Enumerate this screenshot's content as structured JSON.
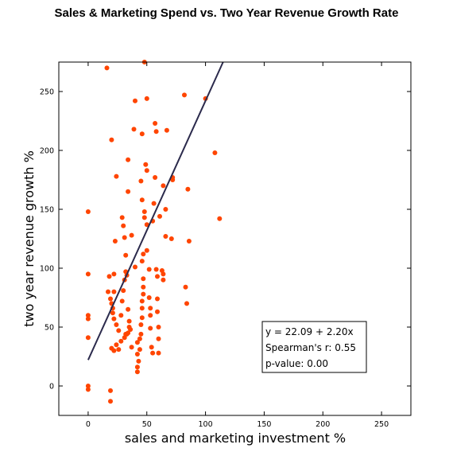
{
  "chart_data": {
    "type": "scatter",
    "title": "Sales & Marketing Spend vs. Two Year Revenue Growth Rate",
    "xlabel": "sales and marketing investment %",
    "ylabel": "two year revenue growth %",
    "xlim": [
      -25,
      275
    ],
    "ylim": [
      -25,
      275
    ],
    "xticks": [
      0,
      50,
      100,
      150,
      200,
      250
    ],
    "yticks": [
      0,
      50,
      100,
      150,
      200,
      250
    ],
    "grid": false,
    "point_color": "#ff4500",
    "line_color": "#2b2a4c",
    "points": [
      [
        0,
        148
      ],
      [
        0,
        95
      ],
      [
        0,
        60
      ],
      [
        0,
        57
      ],
      [
        0,
        41
      ],
      [
        0,
        0
      ],
      [
        0,
        -3
      ],
      [
        16,
        270
      ],
      [
        19,
        -4
      ],
      [
        19,
        -13
      ],
      [
        20,
        209
      ],
      [
        22,
        95
      ],
      [
        22,
        80
      ],
      [
        23,
        123
      ],
      [
        24,
        178
      ],
      [
        18,
        93
      ],
      [
        17,
        80
      ],
      [
        19,
        74
      ],
      [
        20,
        70
      ],
      [
        21,
        66
      ],
      [
        21,
        62
      ],
      [
        22,
        57
      ],
      [
        24,
        52
      ],
      [
        26,
        47
      ],
      [
        20,
        32
      ],
      [
        22,
        30
      ],
      [
        24,
        35
      ],
      [
        26,
        31
      ],
      [
        28,
        38
      ],
      [
        28,
        60
      ],
      [
        29,
        72
      ],
      [
        30,
        81
      ],
      [
        31,
        90
      ],
      [
        29,
        143
      ],
      [
        30,
        136
      ],
      [
        31,
        126
      ],
      [
        32,
        111
      ],
      [
        32,
        97
      ],
      [
        33,
        94
      ],
      [
        34,
        65
      ],
      [
        35,
        55
      ],
      [
        35,
        50
      ],
      [
        36,
        48
      ],
      [
        34,
        45
      ],
      [
        33,
        44
      ],
      [
        32,
        44
      ],
      [
        31,
        41
      ],
      [
        37,
        128
      ],
      [
        34,
        165
      ],
      [
        34,
        192
      ],
      [
        39,
        218
      ],
      [
        37,
        33
      ],
      [
        40,
        242
      ],
      [
        40,
        101
      ],
      [
        42,
        37
      ],
      [
        42,
        27
      ],
      [
        42,
        16
      ],
      [
        42,
        12
      ],
      [
        43,
        21
      ],
      [
        44,
        31
      ],
      [
        44,
        40
      ],
      [
        45,
        44
      ],
      [
        45,
        52
      ],
      [
        46,
        58
      ],
      [
        46,
        66
      ],
      [
        46,
        72
      ],
      [
        47,
        78
      ],
      [
        47,
        84
      ],
      [
        47,
        91
      ],
      [
        46,
        106
      ],
      [
        47,
        112
      ],
      [
        46,
        158
      ],
      [
        45,
        174
      ],
      [
        46,
        214
      ],
      [
        48,
        275
      ],
      [
        48,
        143
      ],
      [
        48,
        148
      ],
      [
        49,
        188
      ],
      [
        50,
        244
      ],
      [
        50,
        183
      ],
      [
        50,
        137
      ],
      [
        50,
        115
      ],
      [
        52,
        99
      ],
      [
        52,
        75
      ],
      [
        53,
        66
      ],
      [
        53,
        60
      ],
      [
        53,
        49
      ],
      [
        54,
        33
      ],
      [
        55,
        28
      ],
      [
        55,
        140
      ],
      [
        56,
        155
      ],
      [
        57,
        177
      ],
      [
        57,
        223
      ],
      [
        58,
        216
      ],
      [
        58,
        99
      ],
      [
        59,
        93
      ],
      [
        59,
        74
      ],
      [
        59,
        63
      ],
      [
        60,
        50
      ],
      [
        60,
        40
      ],
      [
        60,
        28
      ],
      [
        61,
        144
      ],
      [
        63,
        98
      ],
      [
        64,
        95
      ],
      [
        64,
        90
      ],
      [
        64,
        170
      ],
      [
        66,
        127
      ],
      [
        66,
        150
      ],
      [
        67,
        217
      ],
      [
        71,
        125
      ],
      [
        72,
        177
      ],
      [
        72,
        175
      ],
      [
        82,
        247
      ],
      [
        83,
        84
      ],
      [
        84,
        70
      ],
      [
        85,
        167
      ],
      [
        86,
        123
      ],
      [
        100,
        244
      ],
      [
        108,
        198
      ],
      [
        112,
        142
      ]
    ],
    "regression_line": {
      "intercept": 22.09,
      "slope": 2.2,
      "x_range": [
        0,
        115
      ]
    },
    "annotation": [
      "y = 22.09 + 2.20x",
      "Spearman's r: 0.55",
      "p-value: 0.00"
    ]
  }
}
